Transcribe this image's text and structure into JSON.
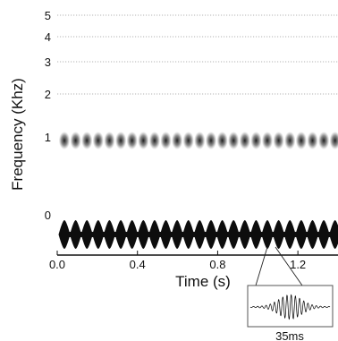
{
  "chart_data": {
    "type": "heatmap",
    "title": "",
    "xlabel": "Time (s)",
    "ylabel": "Frequency (Khz)",
    "x_ticks": [
      "0.0",
      "0.4",
      "0.8",
      "1.2"
    ],
    "x_tick_values": [
      0.0,
      0.4,
      0.8,
      1.2
    ],
    "xlim": [
      0.0,
      1.4
    ],
    "y_ticks": [
      "5",
      "4",
      "3",
      "2",
      "1",
      "0"
    ],
    "y_tick_values": [
      5,
      4,
      3,
      2,
      1,
      0
    ],
    "grid": true,
    "series": [
      {
        "pulse_count": 25,
        "level_khz": 1
      },
      {
        "pulse_count": 25,
        "level_khz": 0
      }
    ],
    "inset": {
      "label": "35ms"
    },
    "colors": {
      "band": "#111111",
      "waveform": "#000000",
      "grid": "#9a9a9a"
    }
  }
}
